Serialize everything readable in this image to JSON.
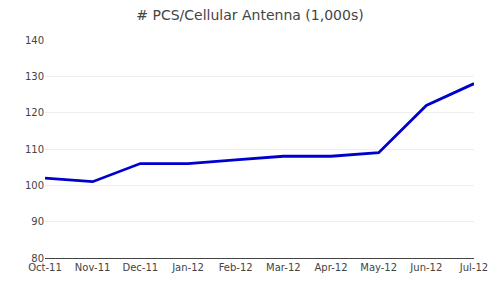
{
  "chart_data": {
    "type": "line",
    "title": "# PCS/Cellular Antenna (1,000s)",
    "categories": [
      "Oct-11",
      "Nov-11",
      "Dec-11",
      "Jan-12",
      "Feb-12",
      "Mar-12",
      "Apr-12",
      "May-12",
      "Jun-12",
      "Jul-12"
    ],
    "values": [
      102,
      101,
      106,
      106,
      107,
      108,
      108,
      109,
      122,
      128
    ],
    "color": "#0000CC",
    "ylim": [
      80,
      140
    ],
    "yticks": [
      80,
      90,
      100,
      110,
      120,
      130,
      140
    ],
    "grid": true
  }
}
